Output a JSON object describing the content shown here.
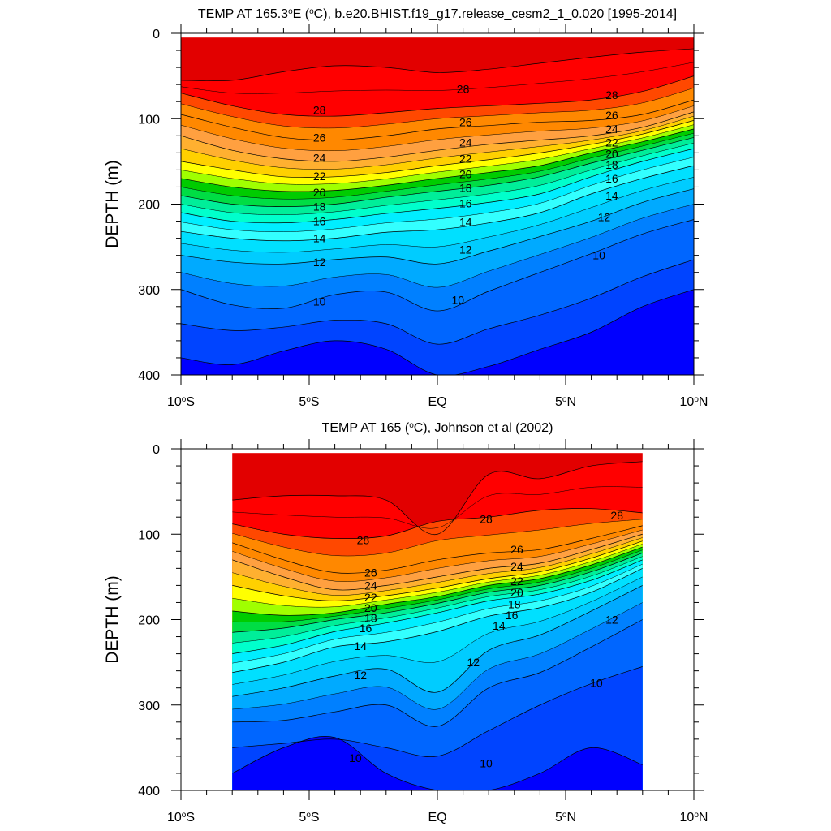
{
  "chart_data": [
    {
      "type": "contour",
      "title_prefix": "TEMP AT 165.3",
      "title_deg": "o",
      "title_mid": "E (",
      "title_deg2": "o",
      "title_suffix": "C), b.e20.BHIST.f19_g17.release_cesm2_1_0.020 [1995-2014]",
      "ylabel": "DEPTH (m)",
      "xlabel": "",
      "xlim": [
        -10,
        10
      ],
      "ylim": [
        0,
        400
      ],
      "y_inverted": true,
      "data_x_range": [
        -10,
        10
      ],
      "data_y_range": [
        5,
        400
      ],
      "x_ticks": [
        {
          "value": -10,
          "num": "10",
          "deg": "o",
          "hemi": "S"
        },
        {
          "value": -5,
          "num": "5",
          "deg": "o",
          "hemi": "S"
        },
        {
          "value": 0,
          "num": "EQ",
          "deg": "",
          "hemi": ""
        },
        {
          "value": 5,
          "num": "5",
          "deg": "o",
          "hemi": "N"
        },
        {
          "value": 10,
          "num": "10",
          "deg": "o",
          "hemi": "N"
        }
      ],
      "y_ticks": [
        "0",
        "100",
        "200",
        "300",
        "400"
      ],
      "y_tick_values": [
        0,
        100,
        200,
        300,
        400
      ],
      "isotherm_depths_m": {
        "x": [
          -10,
          -8,
          -6,
          -4,
          -2,
          0,
          2,
          4,
          6,
          8,
          10
        ],
        "29": [
          55,
          55,
          45,
          38,
          40,
          46,
          42,
          35,
          28,
          22,
          18
        ],
        "28": [
          70,
          85,
          95,
          97,
          93,
          88,
          85,
          82,
          78,
          68,
          50
        ],
        "26": [
          95,
          110,
          122,
          125,
          120,
          112,
          108,
          104,
          102,
          95,
          78
        ],
        "24": [
          120,
          137,
          147,
          150,
          145,
          137,
          130,
          125,
          120,
          110,
          92
        ],
        "22": [
          150,
          160,
          168,
          168,
          163,
          155,
          148,
          140,
          130,
          118,
          102
        ],
        "20": [
          170,
          180,
          185,
          184,
          178,
          170,
          163,
          155,
          140,
          127,
          112
        ],
        "18": [
          190,
          200,
          203,
          200,
          192,
          185,
          178,
          168,
          152,
          137,
          122
        ],
        "16": [
          210,
          220,
          222,
          218,
          211,
          205,
          198,
          188,
          168,
          150,
          135
        ],
        "14": [
          232,
          240,
          243,
          240,
          233,
          230,
          222,
          210,
          188,
          170,
          155
        ],
        "12": [
          260,
          268,
          270,
          265,
          262,
          270,
          255,
          238,
          220,
          198,
          182
        ],
        "10": [
          300,
          318,
          322,
          306,
          303,
          325,
          302,
          280,
          258,
          235,
          218
        ],
        "9": [
          340,
          348,
          344,
          336,
          340,
          364,
          346,
          330,
          310,
          285,
          265
        ],
        "8": [
          380,
          388,
          372,
          360,
          370,
          400,
          390,
          370,
          350,
          320,
          300
        ]
      },
      "labels": [
        {
          "text": "28",
          "x": -4.6,
          "y": 90
        },
        {
          "text": "26",
          "x": -4.6,
          "y": 122
        },
        {
          "text": "24",
          "x": -4.6,
          "y": 146
        },
        {
          "text": "22",
          "x": -4.6,
          "y": 167
        },
        {
          "text": "20",
          "x": -4.6,
          "y": 186
        },
        {
          "text": "18",
          "x": -4.6,
          "y": 203
        },
        {
          "text": "16",
          "x": -4.6,
          "y": 220
        },
        {
          "text": "14",
          "x": -4.6,
          "y": 240
        },
        {
          "text": "12",
          "x": -4.6,
          "y": 268
        },
        {
          "text": "10",
          "x": -4.6,
          "y": 314
        },
        {
          "text": "28",
          "x": 1.0,
          "y": 65
        },
        {
          "text": "26",
          "x": 1.1,
          "y": 104
        },
        {
          "text": "24",
          "x": 1.1,
          "y": 128
        },
        {
          "text": "22",
          "x": 1.1,
          "y": 147
        },
        {
          "text": "20",
          "x": 1.1,
          "y": 165
        },
        {
          "text": "18",
          "x": 1.1,
          "y": 181
        },
        {
          "text": "16",
          "x": 1.1,
          "y": 199
        },
        {
          "text": "14",
          "x": 1.1,
          "y": 221
        },
        {
          "text": "12",
          "x": 1.1,
          "y": 253
        },
        {
          "text": "10",
          "x": 0.8,
          "y": 312
        },
        {
          "text": "28",
          "x": 6.8,
          "y": 72
        },
        {
          "text": "26",
          "x": 6.8,
          "y": 96
        },
        {
          "text": "24",
          "x": 6.8,
          "y": 112
        },
        {
          "text": "22",
          "x": 6.8,
          "y": 128
        },
        {
          "text": "20",
          "x": 6.8,
          "y": 141
        },
        {
          "text": "18",
          "x": 6.8,
          "y": 154
        },
        {
          "text": "16",
          "x": 6.8,
          "y": 170
        },
        {
          "text": "14",
          "x": 6.8,
          "y": 190
        },
        {
          "text": "12",
          "x": 6.5,
          "y": 215
        },
        {
          "text": "10",
          "x": 6.3,
          "y": 260
        }
      ]
    },
    {
      "type": "contour",
      "title_prefix": "TEMP AT 165 (",
      "title_deg": "o",
      "title_mid": "",
      "title_deg2": "",
      "title_suffix": "C), Johnson et al (2002)",
      "ylabel": "DEPTH (m)",
      "xlabel": "",
      "xlim": [
        -10,
        10
      ],
      "ylim": [
        0,
        400
      ],
      "y_inverted": true,
      "data_x_range": [
        -8,
        8
      ],
      "data_y_range": [
        5,
        400
      ],
      "x_ticks": [
        {
          "value": -10,
          "num": "10",
          "deg": "o",
          "hemi": "S"
        },
        {
          "value": -5,
          "num": "5",
          "deg": "o",
          "hemi": "S"
        },
        {
          "value": 0,
          "num": "EQ",
          "deg": "",
          "hemi": ""
        },
        {
          "value": 5,
          "num": "5",
          "deg": "o",
          "hemi": "N"
        },
        {
          "value": 10,
          "num": "10",
          "deg": "o",
          "hemi": "N"
        }
      ],
      "y_ticks": [
        "0",
        "100",
        "200",
        "300",
        "400"
      ],
      "y_tick_values": [
        0,
        100,
        200,
        300,
        400
      ],
      "isotherm_depths_m": {
        "x": [
          -8,
          -6,
          -4,
          -2,
          0,
          2,
          4,
          6,
          8
        ],
        "29": [
          60,
          55,
          55,
          60,
          100,
          30,
          35,
          20,
          15
        ],
        "28": [
          88,
          100,
          105,
          102,
          85,
          80,
          72,
          70,
          75
        ],
        "26": [
          110,
          130,
          145,
          142,
          130,
          122,
          118,
          105,
          90
        ],
        "24": [
          130,
          150,
          165,
          160,
          150,
          140,
          134,
          118,
          100
        ],
        "22": [
          160,
          172,
          178,
          172,
          163,
          152,
          144,
          128,
          108
        ],
        "20": [
          190,
          195,
          192,
          182,
          173,
          160,
          152,
          136,
          115
        ],
        "18": [
          215,
          210,
          200,
          192,
          181,
          168,
          160,
          144,
          122
        ],
        "16": [
          240,
          230,
          214,
          204,
          192,
          178,
          170,
          154,
          130
        ],
        "14": [
          262,
          250,
          232,
          226,
          214,
          196,
          186,
          168,
          140
        ],
        "12": [
          290,
          280,
          266,
          258,
          285,
          236,
          218,
          190,
          160
        ],
        "10": [
          320,
          318,
          308,
          300,
          325,
          280,
          262,
          232,
          200
        ],
        "9": [
          350,
          345,
          340,
          350,
          360,
          330,
          300,
          275,
          255
        ],
        "8": [
          380,
          350,
          338,
          380,
          400,
          400,
          380,
          350,
          370
        ]
      },
      "labels": [
        {
          "text": "28",
          "x": -2.9,
          "y": 107
        },
        {
          "text": "26",
          "x": -2.6,
          "y": 145
        },
        {
          "text": "24",
          "x": -2.6,
          "y": 160
        },
        {
          "text": "22",
          "x": -2.6,
          "y": 174
        },
        {
          "text": "20",
          "x": -2.6,
          "y": 186
        },
        {
          "text": "18",
          "x": -2.6,
          "y": 198
        },
        {
          "text": "16",
          "x": -2.8,
          "y": 210
        },
        {
          "text": "14",
          "x": -3.0,
          "y": 231
        },
        {
          "text": "12",
          "x": -3.0,
          "y": 265
        },
        {
          "text": "10",
          "x": -3.2,
          "y": 362
        },
        {
          "text": "28",
          "x": 1.9,
          "y": 82
        },
        {
          "text": "26",
          "x": 3.1,
          "y": 118
        },
        {
          "text": "24",
          "x": 3.1,
          "y": 138
        },
        {
          "text": "22",
          "x": 3.1,
          "y": 155
        },
        {
          "text": "20",
          "x": 3.1,
          "y": 168
        },
        {
          "text": "18",
          "x": 3.0,
          "y": 182
        },
        {
          "text": "16",
          "x": 2.9,
          "y": 195
        },
        {
          "text": "14",
          "x": 2.4,
          "y": 207
        },
        {
          "text": "12",
          "x": 1.4,
          "y": 250
        },
        {
          "text": "10",
          "x": 1.9,
          "y": 368
        },
        {
          "text": "28",
          "x": 7.0,
          "y": 78
        },
        {
          "text": "12",
          "x": 6.8,
          "y": 200
        },
        {
          "text": "10",
          "x": 6.2,
          "y": 274
        }
      ]
    }
  ],
  "colors": {
    "29": "#cc0000",
    "28": "#e20000",
    "27": "#ff0000",
    "26": "#ff4800",
    "25": "#ff8800",
    "24": "#ffa040",
    "23": "#ffb030",
    "22": "#ffd000",
    "21": "#ffff00",
    "20": "#a0ff00",
    "19": "#00cc00",
    "18": "#00dd44",
    "17": "#00ee99",
    "16": "#00ffcc",
    "15": "#00eeff",
    "14": "#33ffff",
    "13": "#00e0ff",
    "12": "#00ccff",
    "11": "#00aaff",
    "10": "#0080ff",
    "9": "#0066ff",
    "8": "#0044ff",
    "7": "#0000ff",
    "6": "#6600dd"
  }
}
